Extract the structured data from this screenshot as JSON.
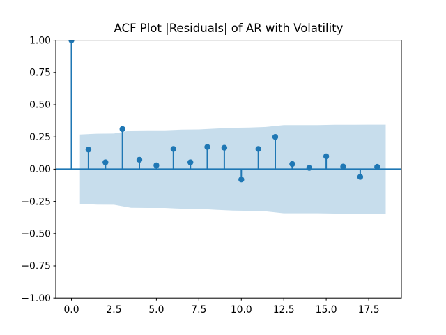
{
  "figure": {
    "background": "#ffffff"
  },
  "chart_data": {
    "type": "stem",
    "title": "ACF Plot |Residuals| of AR with Volatility",
    "xlabel": "",
    "ylabel": "",
    "grid": false,
    "legend": "none",
    "xlim": [
      -0.925,
      19.425
    ],
    "ylim": [
      -1.0,
      1.0
    ],
    "lags": [
      0,
      1,
      2,
      3,
      4,
      5,
      6,
      7,
      8,
      9,
      10,
      11,
      12,
      13,
      14,
      15,
      16,
      17,
      18
    ],
    "acf_values": [
      1.0,
      0.152,
      0.053,
      0.311,
      0.073,
      0.03,
      0.157,
      0.053,
      0.172,
      0.166,
      -0.08,
      0.157,
      0.25,
      0.04,
      0.01,
      0.1,
      0.02,
      -0.06,
      0.018
    ],
    "confidence_band": {
      "x": [
        0.5,
        1.5,
        2.5,
        3.5,
        4.5,
        5.5,
        6.5,
        7.5,
        8.5,
        9.5,
        10.5,
        11.5,
        12.5,
        13.5,
        14.5,
        15.5,
        16.5,
        17.5,
        18.5
      ],
      "upper": [
        0.269,
        0.275,
        0.276,
        0.3,
        0.301,
        0.301,
        0.307,
        0.308,
        0.315,
        0.321,
        0.323,
        0.328,
        0.342,
        0.342,
        0.342,
        0.344,
        0.344,
        0.345,
        0.345
      ],
      "lower": [
        -0.269,
        -0.275,
        -0.276,
        -0.3,
        -0.301,
        -0.301,
        -0.307,
        -0.308,
        -0.315,
        -0.321,
        -0.323,
        -0.328,
        -0.342,
        -0.342,
        -0.342,
        -0.344,
        -0.344,
        -0.345,
        -0.345
      ]
    },
    "x_ticks": {
      "values": [
        0.0,
        2.5,
        5.0,
        7.5,
        10.0,
        12.5,
        15.0,
        17.5
      ],
      "labels": [
        "0.0",
        "2.5",
        "5.0",
        "7.5",
        "10.0",
        "12.5",
        "15.0",
        "17.5"
      ]
    },
    "y_ticks": {
      "values": [
        1.0,
        0.75,
        0.5,
        0.25,
        0.0,
        -0.25,
        -0.5,
        -0.75,
        -1.0
      ],
      "labels": [
        "1.00",
        "0.75",
        "0.50",
        "0.25",
        "0.00",
        "−0.25",
        "−0.50",
        "−0.75",
        "−1.00"
      ]
    },
    "colors": {
      "line": "#1f77b4",
      "band_fill": "#c7ddec",
      "spine": "#000000",
      "text": "#000000"
    }
  }
}
